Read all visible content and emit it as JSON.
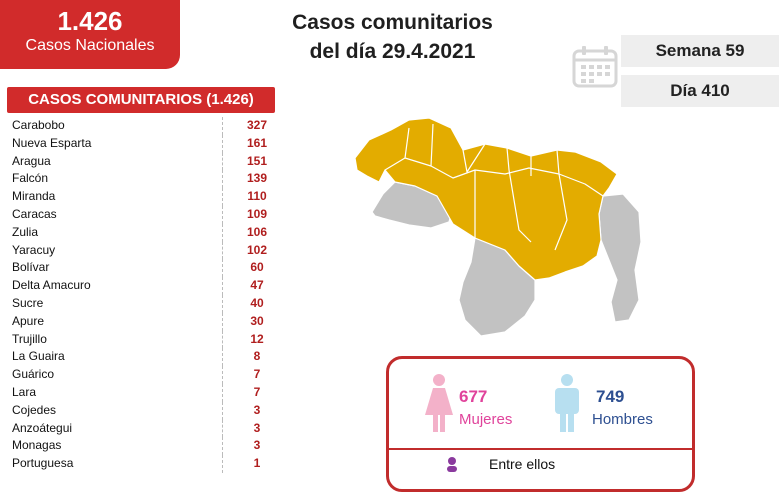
{
  "national": {
    "total": "1.426",
    "label": "Casos Nacionales"
  },
  "headline": {
    "line1": "Casos comunitarios",
    "line2": "del día 29.4.2021"
  },
  "week": "Semana 59",
  "day": "Día 410",
  "table": {
    "header": "CASOS COMUNITARIOS (1.426)",
    "rows": [
      {
        "state": "Carabobo",
        "cases": "327"
      },
      {
        "state": "Nueva Esparta",
        "cases": "161"
      },
      {
        "state": "Aragua",
        "cases": "151"
      },
      {
        "state": "Falcón",
        "cases": "139"
      },
      {
        "state": "Miranda",
        "cases": "110"
      },
      {
        "state": "Caracas",
        "cases": "109"
      },
      {
        "state": "Zulia",
        "cases": "106"
      },
      {
        "state": "Yaracuy",
        "cases": "102"
      },
      {
        "state": "Bolívar",
        "cases": "60"
      },
      {
        "state": "Delta Amacuro",
        "cases": "47"
      },
      {
        "state": "Sucre",
        "cases": "40"
      },
      {
        "state": "Apure",
        "cases": "30"
      },
      {
        "state": "Trujillo",
        "cases": "12"
      },
      {
        "state": "La Guaira",
        "cases": "8"
      },
      {
        "state": "Guárico",
        "cases": "7"
      },
      {
        "state": "Lara",
        "cases": "7"
      },
      {
        "state": "Cojedes",
        "cases": "3"
      },
      {
        "state": "Anzoátegui",
        "cases": "3"
      },
      {
        "state": "Monagas",
        "cases": "3"
      },
      {
        "state": "Portuguesa",
        "cases": "1"
      }
    ]
  },
  "gender": {
    "women_count": "677",
    "women_label": "Mujeres",
    "men_count": "749",
    "men_label": "Hombres",
    "between_label": "Entre ellos"
  },
  "colors": {
    "accent": "#d12b2b",
    "affected": "#e3ac00",
    "unaffected": "#c2c2c2",
    "women": "#e0439b",
    "men": "#2d4f91"
  },
  "icons": [
    "calendar-icon",
    "female-icon",
    "male-icon",
    "person-icon"
  ]
}
